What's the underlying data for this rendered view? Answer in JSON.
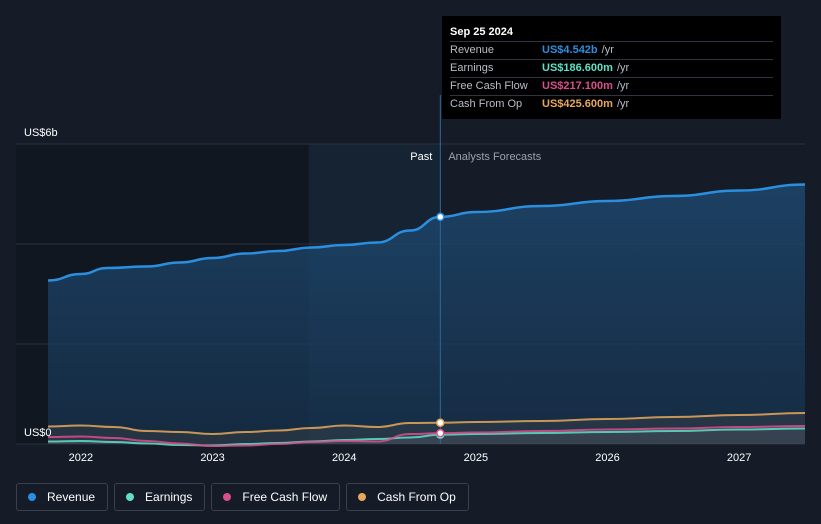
{
  "chart_data": {
    "type": "area",
    "y_unit_label_top": "US$6b",
    "y_unit_label_bottom": "US$0",
    "ylim": [
      0,
      6.0
    ],
    "xlim": [
      2021.75,
      2027.5
    ],
    "x_ticks": [
      {
        "value": 2022,
        "label": "2022"
      },
      {
        "value": 2023,
        "label": "2023"
      },
      {
        "value": 2024,
        "label": "2024"
      },
      {
        "value": 2025,
        "label": "2025"
      },
      {
        "value": 2026,
        "label": "2026"
      },
      {
        "value": 2027,
        "label": "2027"
      }
    ],
    "past_label": "Past",
    "forecast_label": "Analysts Forecasts",
    "divider_x": 2024.73,
    "highlight_start_x": 2023.73,
    "series": [
      {
        "name": "Revenue",
        "key": "revenue",
        "color": "#2b8fe0",
        "past": [
          [
            2021.75,
            3.27
          ],
          [
            2022.0,
            3.4
          ],
          [
            2022.2,
            3.52
          ],
          [
            2022.5,
            3.55
          ],
          [
            2022.75,
            3.63
          ],
          [
            2023.0,
            3.72
          ],
          [
            2023.25,
            3.81
          ],
          [
            2023.5,
            3.86
          ],
          [
            2023.75,
            3.93
          ],
          [
            2024.0,
            3.98
          ],
          [
            2024.25,
            4.03
          ],
          [
            2024.5,
            4.27
          ],
          [
            2024.73,
            4.542
          ]
        ],
        "forecast": [
          [
            2024.73,
            4.542
          ],
          [
            2025.0,
            4.64
          ],
          [
            2025.5,
            4.76
          ],
          [
            2026.0,
            4.86
          ],
          [
            2026.5,
            4.96
          ],
          [
            2027.0,
            5.07
          ],
          [
            2027.5,
            5.19
          ]
        ]
      },
      {
        "name": "Earnings",
        "key": "earnings",
        "color": "#5ee1c6",
        "past": [
          [
            2021.75,
            0.05
          ],
          [
            2022.0,
            0.06
          ],
          [
            2022.25,
            0.04
          ],
          [
            2022.5,
            0.01
          ],
          [
            2022.75,
            -0.02
          ],
          [
            2023.0,
            -0.03
          ],
          [
            2023.25,
            0.0
          ],
          [
            2023.5,
            0.02
          ],
          [
            2023.75,
            0.05
          ],
          [
            2024.0,
            0.08
          ],
          [
            2024.25,
            0.1
          ],
          [
            2024.5,
            0.13
          ],
          [
            2024.73,
            0.1866
          ]
        ],
        "forecast": [
          [
            2024.73,
            0.1866
          ],
          [
            2025.0,
            0.2
          ],
          [
            2025.5,
            0.22
          ],
          [
            2026.0,
            0.24
          ],
          [
            2026.5,
            0.26
          ],
          [
            2027.0,
            0.29
          ],
          [
            2027.5,
            0.31
          ]
        ]
      },
      {
        "name": "Free Cash Flow",
        "key": "fcf",
        "color": "#d94f8c",
        "past": [
          [
            2021.75,
            0.14
          ],
          [
            2022.0,
            0.15
          ],
          [
            2022.25,
            0.12
          ],
          [
            2022.5,
            0.06
          ],
          [
            2022.75,
            0.01
          ],
          [
            2023.0,
            -0.04
          ],
          [
            2023.25,
            -0.03
          ],
          [
            2023.5,
            0.0
          ],
          [
            2023.75,
            0.04
          ],
          [
            2024.0,
            0.06
          ],
          [
            2024.25,
            0.05
          ],
          [
            2024.5,
            0.2
          ],
          [
            2024.73,
            0.2171
          ]
        ],
        "forecast": [
          [
            2024.73,
            0.2171
          ],
          [
            2025.0,
            0.23
          ],
          [
            2025.5,
            0.26
          ],
          [
            2026.0,
            0.29
          ],
          [
            2026.5,
            0.31
          ],
          [
            2027.0,
            0.34
          ],
          [
            2027.5,
            0.36
          ]
        ]
      },
      {
        "name": "Cash From Op",
        "key": "cfo",
        "color": "#e8a85a",
        "past": [
          [
            2021.75,
            0.35
          ],
          [
            2022.0,
            0.37
          ],
          [
            2022.25,
            0.34
          ],
          [
            2022.5,
            0.26
          ],
          [
            2022.75,
            0.24
          ],
          [
            2023.0,
            0.2
          ],
          [
            2023.25,
            0.24
          ],
          [
            2023.5,
            0.27
          ],
          [
            2023.75,
            0.32
          ],
          [
            2024.0,
            0.37
          ],
          [
            2024.25,
            0.34
          ],
          [
            2024.5,
            0.42
          ],
          [
            2024.73,
            0.4256
          ]
        ],
        "forecast": [
          [
            2024.73,
            0.4256
          ],
          [
            2025.0,
            0.44
          ],
          [
            2025.5,
            0.46
          ],
          [
            2026.0,
            0.5
          ],
          [
            2026.5,
            0.54
          ],
          [
            2027.0,
            0.58
          ],
          [
            2027.5,
            0.62
          ]
        ]
      }
    ],
    "tooltip": {
      "date": "Sep 25 2024",
      "rows": [
        {
          "label": "Revenue",
          "value": "US$4.542b",
          "unit": "/yr",
          "color": "#2b8fe0"
        },
        {
          "label": "Earnings",
          "value": "US$186.600m",
          "unit": "/yr",
          "color": "#5ee1c6"
        },
        {
          "label": "Free Cash Flow",
          "value": "US$217.100m",
          "unit": "/yr",
          "color": "#d94f8c"
        },
        {
          "label": "Cash From Op",
          "value": "US$425.600m",
          "unit": "/yr",
          "color": "#e8a85a"
        }
      ]
    },
    "legend": [
      {
        "label": "Revenue",
        "color": "#2b8fe0"
      },
      {
        "label": "Earnings",
        "color": "#5ee1c6"
      },
      {
        "label": "Free Cash Flow",
        "color": "#d94f8c"
      },
      {
        "label": "Cash From Op",
        "color": "#e8a85a"
      }
    ]
  }
}
